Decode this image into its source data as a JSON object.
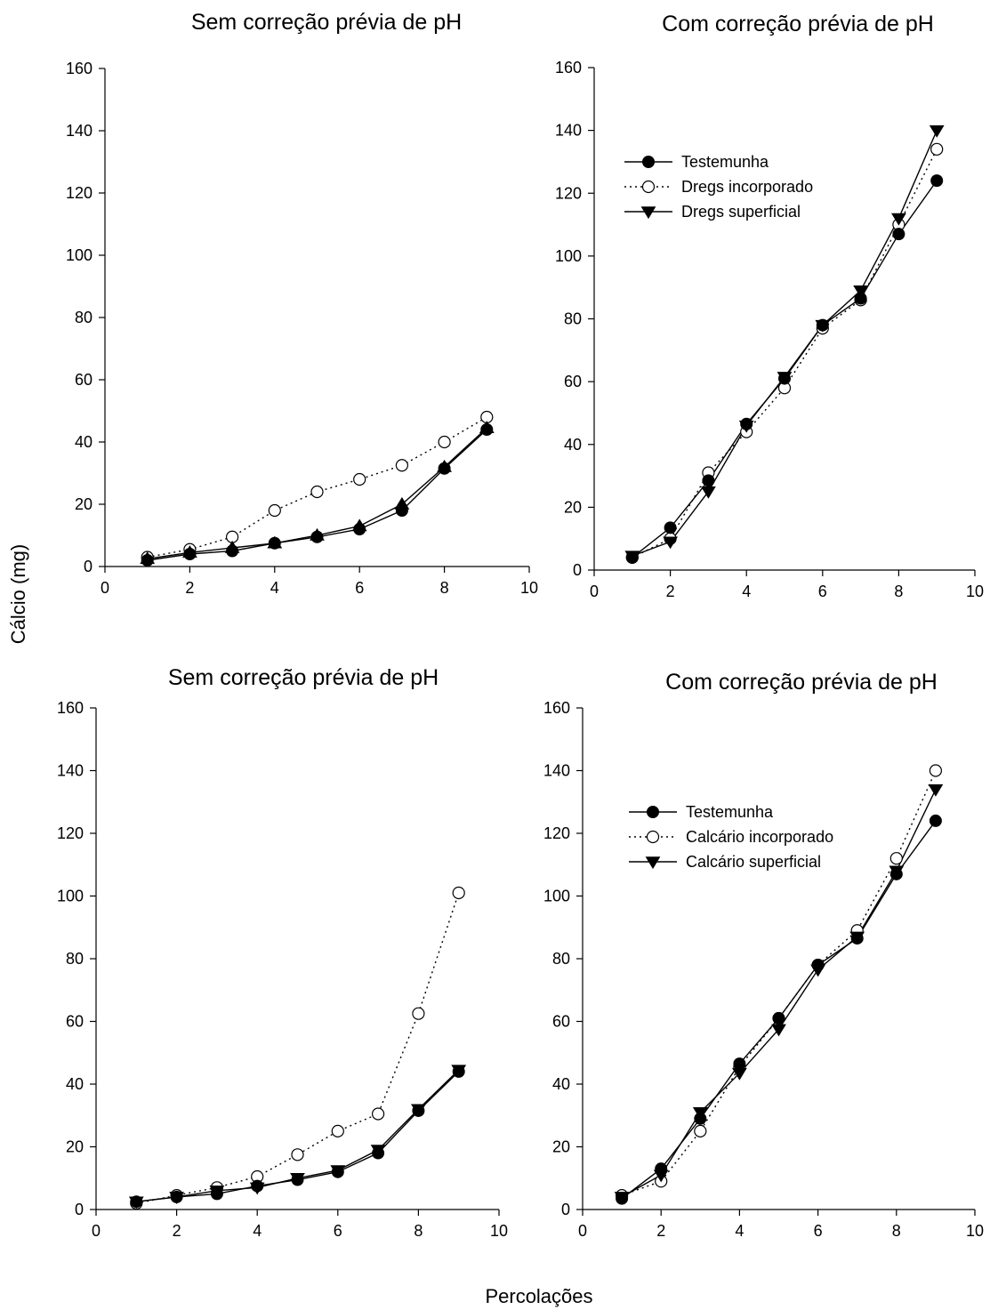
{
  "figure": {
    "shared_ylabel": "Cálcio (mg)",
    "shared_xlabel": "Percolações"
  },
  "chart_data": [
    {
      "type": "line",
      "title": "Sem correção prévia de pH",
      "xlabel": "",
      "ylabel": "",
      "xlim": [
        0,
        10
      ],
      "ylim": [
        0,
        160
      ],
      "xticks": [
        0,
        2,
        4,
        6,
        8,
        10
      ],
      "yticks": [
        0,
        20,
        40,
        60,
        80,
        100,
        120,
        140,
        160
      ],
      "grid": false,
      "legend": null,
      "series": [
        {
          "name": "Testemunha",
          "marker": "filled-circle",
          "line": "solid",
          "x": [
            1,
            2,
            3,
            4,
            5,
            6,
            7,
            8,
            9
          ],
          "y": [
            2,
            4,
            5,
            7.5,
            9.5,
            12,
            18,
            31.5,
            44
          ]
        },
        {
          "name": "Dregs incorporado",
          "marker": "open-circle",
          "line": "dotted",
          "x": [
            1,
            2,
            3,
            4,
            5,
            6,
            7,
            8,
            9
          ],
          "y": [
            3,
            5.5,
            9.5,
            18,
            24,
            28,
            32.5,
            40,
            48
          ]
        },
        {
          "name": "Dregs superficial",
          "marker": "triangle-up",
          "line": "solid",
          "x": [
            1,
            2,
            3,
            4,
            5,
            6,
            7,
            8,
            9
          ],
          "y": [
            2.5,
            4.5,
            6,
            7.5,
            10,
            13,
            20,
            32,
            44.5
          ]
        }
      ]
    },
    {
      "type": "line",
      "title": "Com correção prévia de pH",
      "xlabel": "",
      "ylabel": "",
      "xlim": [
        0,
        10
      ],
      "ylim": [
        0,
        160
      ],
      "xticks": [
        0,
        2,
        4,
        6,
        8,
        10
      ],
      "yticks": [
        0,
        20,
        40,
        60,
        80,
        100,
        120,
        140,
        160
      ],
      "grid": false,
      "legend": {
        "placement": "top-left",
        "entries": [
          "Testemunha",
          "Dregs incorporado",
          "Dregs superficial"
        ]
      },
      "series": [
        {
          "name": "Testemunha",
          "marker": "filled-circle",
          "line": "solid",
          "x": [
            1,
            2,
            3,
            4,
            5,
            6,
            7,
            8,
            9
          ],
          "y": [
            4,
            13.5,
            28.5,
            46.5,
            61,
            78,
            86.5,
            107,
            124
          ]
        },
        {
          "name": "Dregs incorporado",
          "marker": "open-circle",
          "line": "dotted",
          "x": [
            1,
            2,
            3,
            4,
            5,
            6,
            7,
            8,
            9
          ],
          "y": [
            4,
            10,
            31,
            44,
            58,
            77,
            86,
            110,
            134
          ]
        },
        {
          "name": "Dregs superficial",
          "marker": "triangle-down",
          "line": "solid",
          "x": [
            1,
            2,
            3,
            4,
            5,
            6,
            7,
            8,
            9
          ],
          "y": [
            4.5,
            9,
            25,
            46,
            61.5,
            78,
            89,
            112,
            140
          ]
        }
      ]
    },
    {
      "type": "line",
      "title": "Sem correção prévia de pH",
      "xlabel": "",
      "ylabel": "",
      "xlim": [
        0,
        10
      ],
      "ylim": [
        0,
        160
      ],
      "xticks": [
        0,
        2,
        4,
        6,
        8,
        10
      ],
      "yticks": [
        0,
        20,
        40,
        60,
        80,
        100,
        120,
        140,
        160
      ],
      "grid": false,
      "legend": null,
      "series": [
        {
          "name": "Testemunha",
          "marker": "filled-circle",
          "line": "solid",
          "x": [
            1,
            2,
            3,
            4,
            5,
            6,
            7,
            8,
            9
          ],
          "y": [
            2.5,
            4,
            5,
            7.5,
            9.5,
            12,
            18,
            31.5,
            44
          ]
        },
        {
          "name": "Calcário incorporado",
          "marker": "open-circle",
          "line": "dotted",
          "x": [
            1,
            2,
            3,
            4,
            5,
            6,
            7,
            8,
            9
          ],
          "y": [
            2,
            4.5,
            7,
            10.5,
            17.5,
            25,
            30.5,
            62.5,
            101
          ]
        },
        {
          "name": "Calcário superficial",
          "marker": "triangle-down",
          "line": "solid",
          "x": [
            1,
            2,
            3,
            4,
            5,
            6,
            7,
            8,
            9
          ],
          "y": [
            2.5,
            4,
            6,
            7,
            10,
            12.5,
            19,
            32,
            44.5
          ]
        }
      ]
    },
    {
      "type": "line",
      "title": "Com correção prévia de pH",
      "xlabel": "",
      "ylabel": "",
      "xlim": [
        0,
        10
      ],
      "ylim": [
        0,
        160
      ],
      "xticks": [
        0,
        2,
        4,
        6,
        8,
        10
      ],
      "yticks": [
        0,
        20,
        40,
        60,
        80,
        100,
        120,
        140,
        160
      ],
      "grid": false,
      "legend": {
        "placement": "top-left",
        "entries": [
          "Testemunha",
          "Calcário incorporado",
          "Calcário superficial"
        ]
      },
      "series": [
        {
          "name": "Testemunha",
          "marker": "filled-circle",
          "line": "solid",
          "x": [
            1,
            2,
            3,
            4,
            5,
            6,
            7,
            8,
            9
          ],
          "y": [
            3.5,
            13,
            29,
            46.5,
            61,
            78,
            86.5,
            107,
            124
          ]
        },
        {
          "name": "Calcário incorporado",
          "marker": "open-circle",
          "line": "dotted",
          "x": [
            1,
            2,
            3,
            4,
            5,
            6,
            7,
            8,
            9
          ],
          "y": [
            4.5,
            9,
            25,
            45.5,
            61,
            78,
            89,
            112,
            140
          ]
        },
        {
          "name": "Calcário superficial",
          "marker": "triangle-down",
          "line": "solid",
          "x": [
            1,
            2,
            3,
            4,
            5,
            6,
            7,
            8,
            9
          ],
          "y": [
            4,
            11,
            31,
            43.5,
            57.5,
            76.5,
            87,
            108,
            134
          ]
        }
      ]
    }
  ]
}
